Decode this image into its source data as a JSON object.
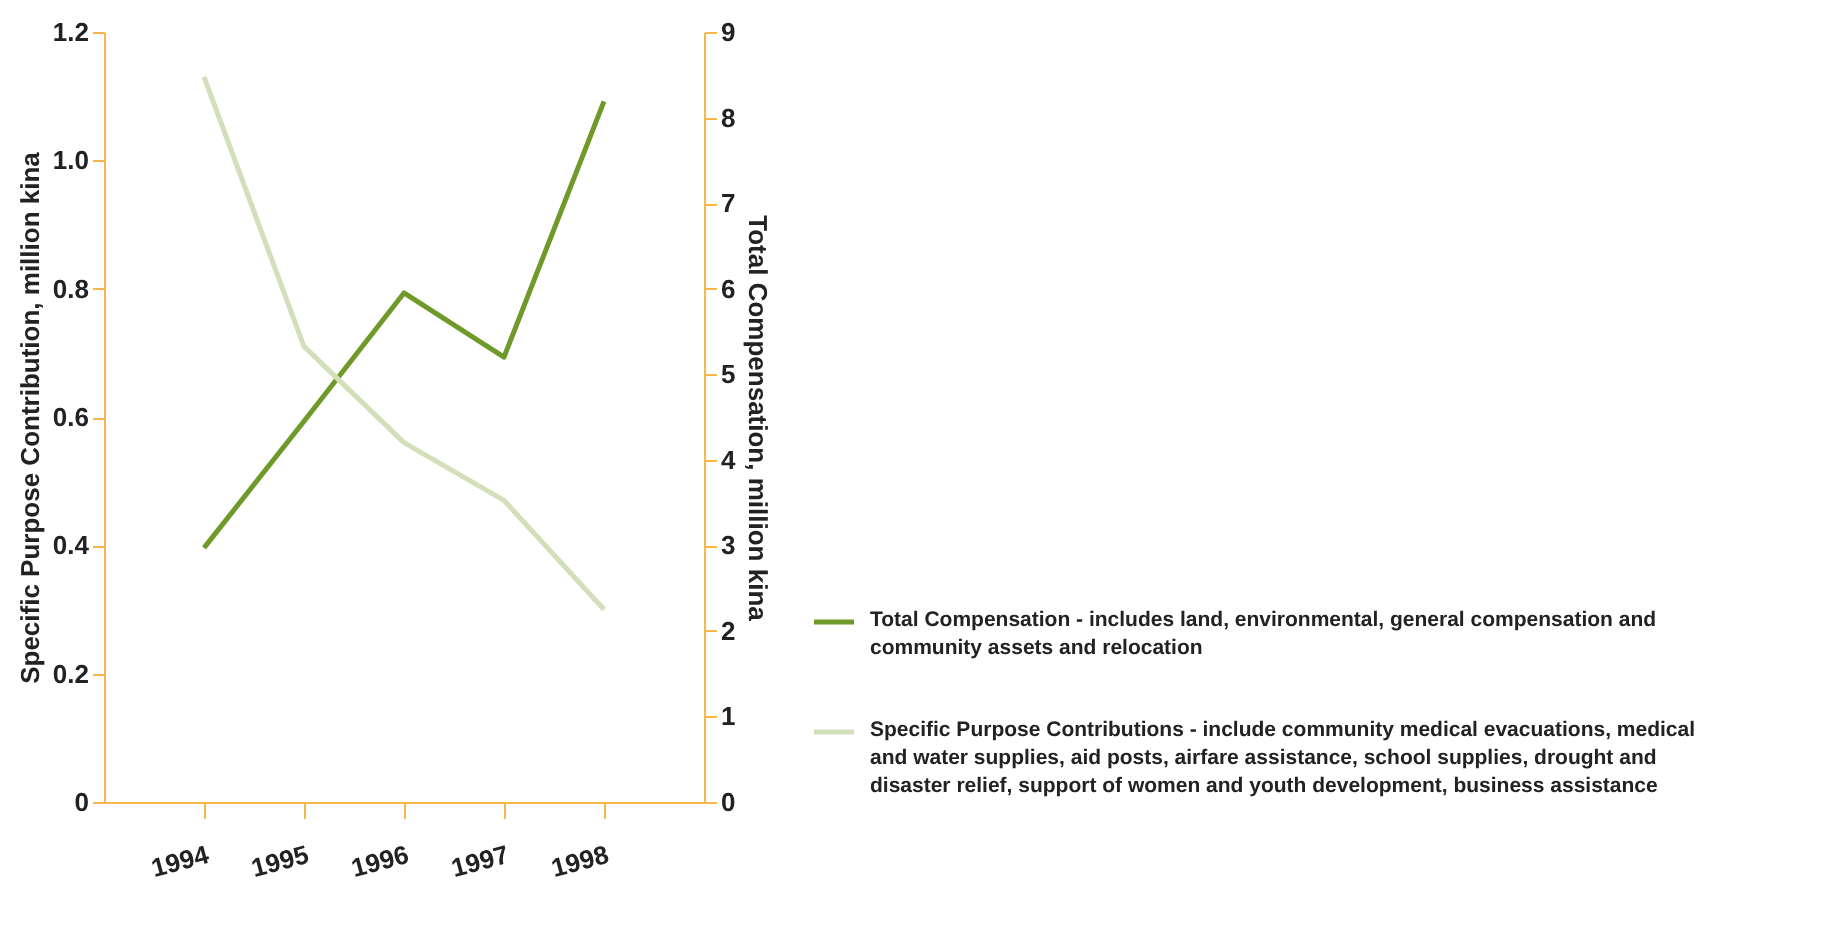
{
  "chart_data": {
    "type": "line",
    "ylabel": "Specific Purpose Contribution, million kina",
    "y2label": "Total Compensation, million kina",
    "categories": [
      "1994",
      "1995",
      "1996",
      "1997",
      "1998"
    ],
    "series": [
      {
        "name": "Total Compensation - includes land, environmental, general compensation and community assets and relocation",
        "color": "#6f9a2a",
        "axis": "y2",
        "values": [
          2.97,
          4.45,
          5.95,
          5.2,
          8.19
        ]
      },
      {
        "name": "Specific Purpose Contributions - include community medical evacuations, medical and water supplies, aid posts, airfare assistance, school supplies, drought and disaster relief, support of women and youth development, business assistance",
        "color": "#d3dfb8",
        "values": [
          1.13,
          0.71,
          0.56,
          0.47,
          0.3
        ]
      }
    ],
    "ylim": [
      0,
      1.2
    ],
    "yticks": [
      0,
      0.2,
      0.4,
      0.6,
      0.8,
      {
        "value": 1,
        "label": "1.0"
      },
      1.2
    ],
    "y2lim": [
      0,
      9
    ],
    "y2ticks": [
      0,
      1,
      2,
      3,
      4,
      5,
      6,
      7,
      8,
      9
    ],
    "legend": "right",
    "grid": false
  }
}
